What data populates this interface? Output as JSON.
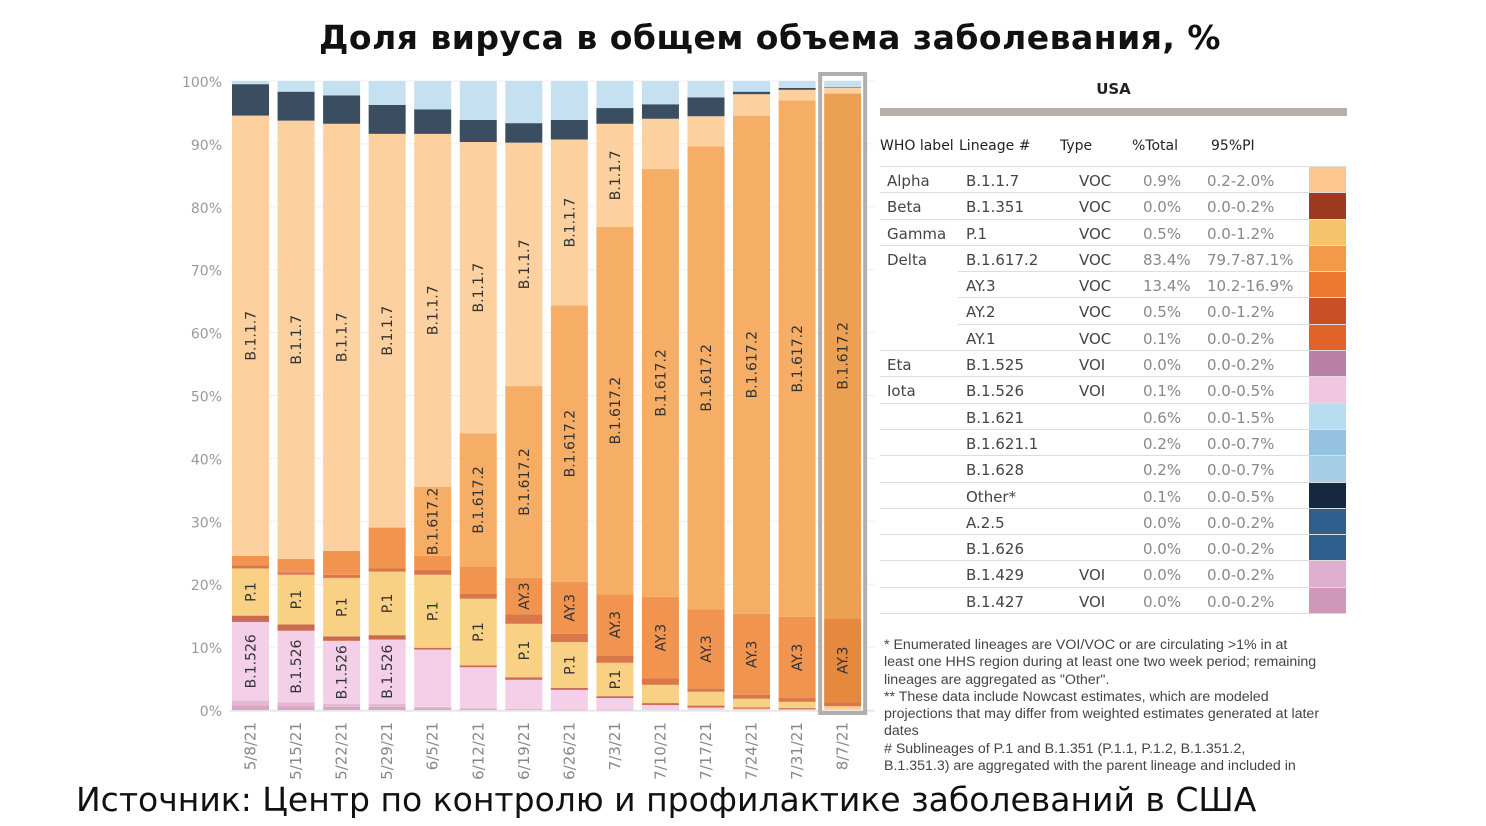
{
  "slide_title": "Доля вируса в общем объема заболевания, %",
  "source": "Источник: Центр по контролю и профилактике заболеваний в США",
  "chart_data": {
    "type": "bar",
    "stacked": true,
    "ylim": [
      0,
      100
    ],
    "yticks": [
      "0%",
      "10%",
      "20%",
      "30%",
      "40%",
      "50%",
      "60%",
      "70%",
      "80%",
      "90%",
      "100%"
    ],
    "xlabel": "",
    "ylabel": "",
    "categories": [
      "5/8/21",
      "5/15/21",
      "5/22/21",
      "5/29/21",
      "6/5/21",
      "6/12/21",
      "6/19/21",
      "6/26/21",
      "7/3/21",
      "7/10/21",
      "7/17/21",
      "7/24/21",
      "7/31/21",
      "8/7/21"
    ],
    "highlighted": "8/7/21",
    "stack_order": [
      "B.1.427",
      "B.1.429",
      "B.1.526",
      "B.1.351",
      "P.1",
      "AY.2",
      "AY.3",
      "B.1.617.2",
      "B.1.1.7",
      "Other",
      "B.1.621"
    ],
    "colors": {
      "B.1.427": "#d8a6c4",
      "B.1.429": "#e2b8d2",
      "B.1.526": "#f3d0e7",
      "B.1.351": "#c96b4f",
      "P.1": "#f8d184",
      "AY.2": "#d9774a",
      "AY.3": "#f1944f",
      "B.1.617.2": "#f6ae66",
      "B.1.1.7": "#fdd09f",
      "Other": "#3b4d60",
      "B.1.621": "#c4e0f1"
    },
    "highlight_colors": {
      "AY.3": "#e5893f",
      "B.1.617.2": "#eca052"
    },
    "series": [
      {
        "name": "B.1.427",
        "values": [
          0.7,
          0.6,
          0.5,
          0.5,
          0.3,
          0.2,
          0.1,
          0.05,
          0.05,
          0,
          0,
          0,
          0,
          0
        ]
      },
      {
        "name": "B.1.429",
        "values": [
          0.8,
          0.6,
          0.5,
          0.5,
          0.2,
          0.1,
          0.1,
          0.05,
          0.05,
          0,
          0,
          0,
          0,
          0
        ]
      },
      {
        "name": "B.1.526",
        "values": [
          12.5,
          11.4,
          10,
          10.2,
          9.1,
          6.5,
          4.6,
          3.1,
          1.8,
          0.8,
          0.4,
          0.2,
          0.1,
          0.1
        ]
      },
      {
        "name": "B.1.351",
        "values": [
          1,
          1,
          0.7,
          0.7,
          0.3,
          0.3,
          0.4,
          0.3,
          0.3,
          0.3,
          0.3,
          0.2,
          0.2,
          0
        ]
      },
      {
        "name": "P.1",
        "values": [
          7.5,
          7.9,
          9.3,
          10.1,
          11.6,
          10.6,
          8.5,
          7.3,
          5.3,
          2.9,
          2.2,
          1.4,
          1.0,
          0.5
        ]
      },
      {
        "name": "AY.2",
        "values": [
          0.5,
          0.4,
          0.5,
          0.5,
          0.8,
          0.8,
          1.5,
          1.3,
          1.2,
          1.0,
          0.5,
          0.6,
          0.6,
          0.6
        ]
      },
      {
        "name": "AY.3",
        "values": [
          1.5,
          2.1,
          3.8,
          6.5,
          2.2,
          4.3,
          5.8,
          8.3,
          9.7,
          13,
          12.6,
          12.9,
          12.9,
          13.4
        ]
      },
      {
        "name": "B.1.617.2",
        "values": [
          0,
          0,
          0,
          0,
          11,
          21.2,
          30.5,
          43.9,
          58.4,
          68,
          73.6,
          79.2,
          82.1,
          83.4
        ]
      },
      {
        "name": "B.1.1.7",
        "values": [
          70,
          69.7,
          67.9,
          62.6,
          56.1,
          46.3,
          38.7,
          26.4,
          16.4,
          8,
          4.8,
          3.4,
          1.7,
          0.9
        ]
      },
      {
        "name": "Other",
        "values": [
          5,
          4.6,
          4.5,
          4.6,
          3.9,
          3.5,
          3.1,
          3.1,
          2.5,
          2.3,
          3,
          0.4,
          0.3,
          0.1
        ]
      },
      {
        "name": "B.1.621",
        "values": [
          0.5,
          1.7,
          2.3,
          3.8,
          4.5,
          6.2,
          6.7,
          6.2,
          4.3,
          3.7,
          2.6,
          1.7,
          1.1,
          1.0
        ]
      }
    ],
    "bar_labels": [
      [
        "B.1.526",
        "P.1",
        "B.1.1.7"
      ],
      [
        "B.1.526",
        "P.1",
        "B.1.1.7"
      ],
      [
        "B.1.526",
        "P.1",
        "B.1.1.7"
      ],
      [
        "B.1.526",
        "P.1",
        "B.1.1.7"
      ],
      [
        "P.1",
        "B.1.617.2",
        "B.1.1.7"
      ],
      [
        "P.1",
        "B.1.617.2",
        "B.1.1.7"
      ],
      [
        "P.1",
        "AY.3",
        "B.1.617.2",
        "B.1.1.7"
      ],
      [
        "P.1",
        "AY.3",
        "B.1.617.2",
        "B.1.1.7"
      ],
      [
        "P.1",
        "AY.3",
        "B.1.617.2",
        "B.1.1.7"
      ],
      [
        "AY.3",
        "B.1.617.2"
      ],
      [
        "AY.3",
        "B.1.617.2"
      ],
      [
        "AY.3",
        "B.1.617.2"
      ],
      [
        "AY.3",
        "B.1.617.2"
      ],
      [
        "AY.3",
        "B.1.617.2"
      ]
    ]
  },
  "table": {
    "region": "USA",
    "headers": {
      "who": "WHO label",
      "lineage": "Lineage #",
      "type": "Type",
      "pct": "%Total",
      "pi": "95%PI"
    },
    "rows": [
      {
        "who": "Alpha",
        "lineage": "B.1.1.7",
        "type": "VOC",
        "pct": "0.9%",
        "pi": "0.2-2.0%",
        "color": "#fdc68e"
      },
      {
        "who": "Beta",
        "lineage": "B.1.351",
        "type": "VOC",
        "pct": "0.0%",
        "pi": "0.0-0.2%",
        "color": "#9e3a22"
      },
      {
        "who": "Gamma",
        "lineage": "P.1",
        "type": "VOC",
        "pct": "0.5%",
        "pi": "0.0-1.2%",
        "color": "#f5c46a"
      },
      {
        "who": "Delta",
        "lineage": "B.1.617.2",
        "type": "VOC",
        "pct": "83.4%",
        "pi": "79.7-87.1%",
        "color": "#f39a48"
      },
      {
        "who": "",
        "lineage": "AY.3",
        "type": "VOC",
        "pct": "13.4%",
        "pi": "10.2-16.9%",
        "color": "#ec7a30"
      },
      {
        "who": "",
        "lineage": "AY.2",
        "type": "VOC",
        "pct": "0.5%",
        "pi": "0.0-1.2%",
        "color": "#c94f24"
      },
      {
        "who": "",
        "lineage": "AY.1",
        "type": "VOC",
        "pct": "0.1%",
        "pi": "0.0-0.2%",
        "color": "#e0632a"
      },
      {
        "who": "Eta",
        "lineage": "B.1.525",
        "type": "VOI",
        "pct": "0.0%",
        "pi": "0.0-0.2%",
        "color": "#b97fa6"
      },
      {
        "who": "Iota",
        "lineage": "B.1.526",
        "type": "VOI",
        "pct": "0.1%",
        "pi": "0.0-0.5%",
        "color": "#f0c6e0"
      },
      {
        "who": "",
        "lineage": "B.1.621",
        "type": "",
        "pct": "0.6%",
        "pi": "0.0-1.5%",
        "color": "#b8dcf0"
      },
      {
        "who": "",
        "lineage": "B.1.621.1",
        "type": "",
        "pct": "0.2%",
        "pi": "0.0-0.7%",
        "color": "#94c2e0"
      },
      {
        "who": "",
        "lineage": "B.1.628",
        "type": "",
        "pct": "0.2%",
        "pi": "0.0-0.7%",
        "color": "#a5cfe6"
      },
      {
        "who": "",
        "lineage": "Other*",
        "type": "",
        "pct": "0.1%",
        "pi": "0.0-0.5%",
        "color": "#15283f"
      },
      {
        "who": "",
        "lineage": "A.2.5",
        "type": "",
        "pct": "0.0%",
        "pi": "0.0-0.2%",
        "color": "#2f5f8c"
      },
      {
        "who": "",
        "lineage": "B.1.626",
        "type": "",
        "pct": "0.0%",
        "pi": "0.0-0.2%",
        "color": "#2f5f8c"
      },
      {
        "who": "",
        "lineage": "B.1.429",
        "type": "VOI",
        "pct": "0.0%",
        "pi": "0.0-0.2%",
        "color": "#e0aed0"
      },
      {
        "who": "",
        "lineage": "B.1.427",
        "type": "VOI",
        "pct": "0.0%",
        "pi": "0.0-0.2%",
        "color": "#cf98ba"
      }
    ]
  },
  "notes": [
    "*      Enumerated lineages are VOI/VOC or are circulating >1% in at",
    "least one HHS region during at least one two week period; remaining",
    "lineages are aggregated as \"Other\".",
    "**      These data include Nowcast estimates, which are modeled",
    "projections that may differ from weighted estimates generated at later",
    "dates",
    "#      Sublineages of P.1 and B.1.351 (P.1.1,  P.1.2, B.1.351.2,",
    "B.1.351.3) are aggregated with the parent lineage and included in"
  ]
}
